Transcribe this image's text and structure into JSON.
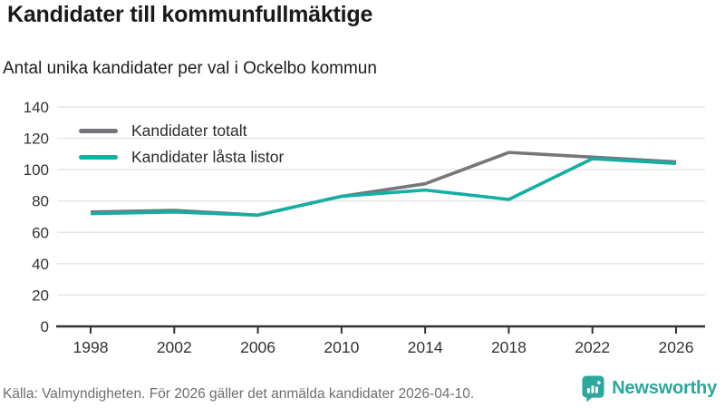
{
  "header": {
    "title": "Kandidater till kommunfullmäktige",
    "subtitle": "Antal unika kandidater per val i Ockelbo kommun"
  },
  "chart_data": {
    "type": "line",
    "x": [
      "1998",
      "2002",
      "2006",
      "2010",
      "2014",
      "2018",
      "2022",
      "2026"
    ],
    "series": [
      {
        "name": "Kandidater totalt",
        "color": "#76767a",
        "values": [
          73,
          74,
          71,
          83,
          91,
          111,
          108,
          105
        ]
      },
      {
        "name": "Kandidater låsta listor",
        "color": "#12afa4",
        "values": [
          72,
          73,
          71,
          83,
          87,
          81,
          107,
          104
        ]
      }
    ],
    "title": "Kandidater till kommunfullmäktige",
    "subtitle": "Antal unika kandidater per val i Ockelbo kommun",
    "xlabel": "",
    "ylabel": "",
    "ylim": [
      0,
      140
    ],
    "yticks": [
      0,
      20,
      40,
      60,
      80,
      100,
      120,
      140
    ],
    "grid": "horizontal",
    "gridline_color": "#e4e4e4",
    "axis_color": "#333333",
    "legend_position": "top-left-inside"
  },
  "footer": {
    "source": "Källa: Valmyndigheten. För 2026 gäller det anmälda kandidater 2026-04-10.",
    "brand": "Newsworthy",
    "brand_color": "#2da69d"
  }
}
